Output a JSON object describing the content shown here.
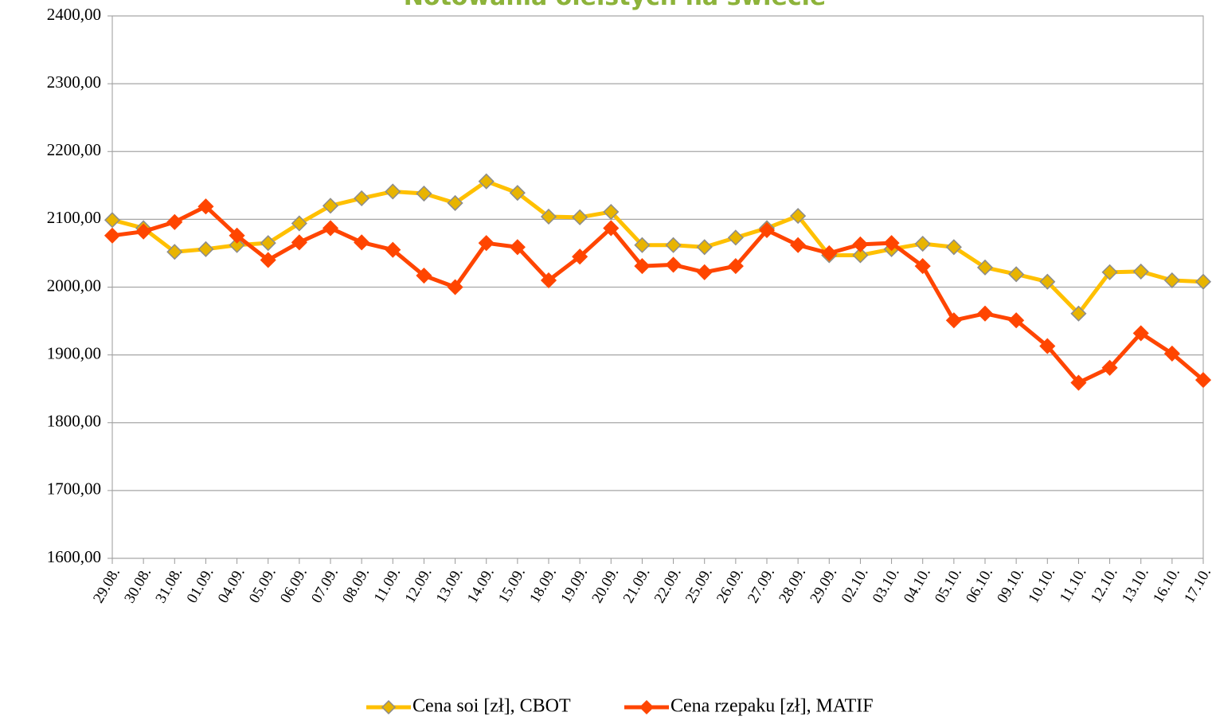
{
  "chart_data": {
    "type": "line",
    "title": "Notowania oleistych na świecie",
    "categories": [
      "29.08.",
      "30.08.",
      "31.08.",
      "01.09.",
      "04.09.",
      "05.09.",
      "06.09.",
      "07.09.",
      "08.09.",
      "11.09.",
      "12.09.",
      "13.09.",
      "14.09.",
      "15.09.",
      "18.09.",
      "19.09.",
      "20.09.",
      "21.09.",
      "22.09.",
      "25.09.",
      "26.09.",
      "27.09.",
      "28.09.",
      "29.09.",
      "02.10.",
      "03.10.",
      "04.10.",
      "05.10.",
      "06.10.",
      "09.10.",
      "10.10.",
      "11.10.",
      "12.10.",
      "13.10.",
      "16.10.",
      "17.10."
    ],
    "series": [
      {
        "name": "Cena soi [zł], CBOT",
        "color": "#ffc000",
        "marker_color": "#e8b400",
        "values": [
          2099,
          2087,
          2052,
          2056,
          2062,
          2065,
          2094,
          2120,
          2131,
          2141,
          2138,
          2124,
          2156,
          2139,
          2104,
          2103,
          2111,
          2062,
          2062,
          2059,
          2073,
          2087,
          2105,
          2047,
          2047,
          2056,
          2064,
          2059,
          2029,
          2019,
          2008,
          1961,
          2022,
          2023,
          2010,
          2008
        ]
      },
      {
        "name": "Cena rzepaku [zł], MATIF",
        "color": "#ff4500",
        "marker_color": "#ff4500",
        "values": [
          2076,
          2082,
          2096,
          2119,
          2076,
          2040,
          2066,
          2087,
          2066,
          2055,
          2017,
          2000,
          2065,
          2059,
          2010,
          2045,
          2087,
          2031,
          2033,
          2022,
          2031,
          2084,
          2062,
          2050,
          2063,
          2065,
          2031,
          1951,
          1961,
          1951,
          1913,
          1859,
          1881,
          1932,
          1902,
          1863
        ]
      }
    ],
    "ylim": [
      1600,
      2400
    ],
    "yticks": [
      {
        "value": 1600,
        "label": "1600,00"
      },
      {
        "value": 1700,
        "label": "1700,00"
      },
      {
        "value": 1800,
        "label": "1800,00"
      },
      {
        "value": 1900,
        "label": "1900,00"
      },
      {
        "value": 2000,
        "label": "2000,00"
      },
      {
        "value": 2100,
        "label": "2100,00"
      },
      {
        "value": 2200,
        "label": "2200,00"
      },
      {
        "value": 2300,
        "label": "2300,00"
      },
      {
        "value": 2400,
        "label": "2400,00"
      }
    ],
    "grid": true
  }
}
